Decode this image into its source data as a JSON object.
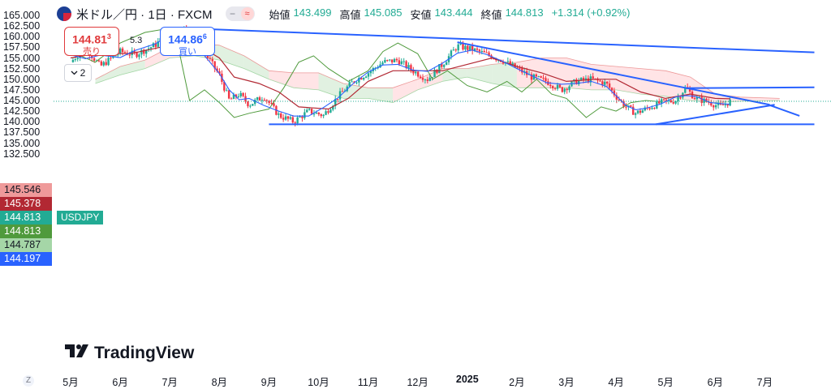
{
  "header": {
    "symbol": "米ドル／円 · 1日 · FXCM",
    "toggle_left": "−",
    "toggle_right": "≈",
    "ohlc": [
      {
        "label": "始値",
        "value": "143.499"
      },
      {
        "label": "高値",
        "value": "145.085"
      },
      {
        "label": "安値",
        "value": "143.444"
      },
      {
        "label": "終値",
        "value": "144.813"
      }
    ],
    "change": "+1.314 (+0.92%)"
  },
  "trade": {
    "sell_price": "144.81",
    "sell_sup": "3",
    "sell_label": "売り",
    "spread": "5.3",
    "buy_price": "144.86",
    "buy_sup": "6",
    "buy_label": "買い"
  },
  "collapse": {
    "icon": "chevron-down-icon",
    "count": "2"
  },
  "price_tags": [
    {
      "value": "145.546",
      "color": "#ef9a9a",
      "text_color": "#131722"
    },
    {
      "value": "145.378",
      "color": "#b22833",
      "text_color": "#ffffff"
    },
    {
      "value": "144.813",
      "color": "#22ab94",
      "text_color": "#ffffff"
    },
    {
      "value": "144.813",
      "color": "#4f9a3c",
      "text_color": "#ffffff"
    },
    {
      "value": "144.787",
      "color": "#a5d6a7",
      "text_color": "#131722"
    },
    {
      "value": "144.197",
      "color": "#2962ff",
      "text_color": "#ffffff"
    }
  ],
  "symbol_tag": "USDJPY",
  "logo": {
    "text": "TradingView",
    "icon": "tradingview-logo-icon"
  },
  "scale_mode": "Z",
  "colors": {
    "up": "#22ab94",
    "down": "#f23645",
    "tenkan": "#2962ff",
    "kijun": "#b22833",
    "chikou": "#4f9a3c",
    "cloud_bull": "#c8e6c9",
    "cloud_bear": "#ffcdd2",
    "trendline": "#2962ff"
  },
  "chart_data": {
    "type": "candlestick",
    "series_name": "USDJPY",
    "ylim": [
      131.0,
      166.0
    ],
    "y_ticks": [
      "165.000",
      "162.500",
      "160.000",
      "157.500",
      "155.000",
      "152.500",
      "150.000",
      "147.500",
      "145.000",
      "142.500",
      "140.000",
      "137.500",
      "135.000",
      "132.500"
    ],
    "x_ticks": [
      {
        "label": "5月",
        "month": 0
      },
      {
        "label": "6月",
        "month": 1
      },
      {
        "label": "7月",
        "month": 2
      },
      {
        "label": "8月",
        "month": 3
      },
      {
        "label": "9月",
        "month": 4
      },
      {
        "label": "10月",
        "month": 5
      },
      {
        "label": "11月",
        "month": 6
      },
      {
        "label": "12月",
        "month": 7
      },
      {
        "label": "2025",
        "month": 8,
        "bold": true
      },
      {
        "label": "2月",
        "month": 9
      },
      {
        "label": "3月",
        "month": 10
      },
      {
        "label": "4月",
        "month": 11
      },
      {
        "label": "5月",
        "month": 12
      },
      {
        "label": "6月",
        "month": 13
      },
      {
        "label": "7月",
        "month": 14
      }
    ],
    "last_close": 144.813,
    "price_path": [
      [
        0.0,
        154.0
      ],
      [
        0.3,
        157.5
      ],
      [
        0.6,
        153.0
      ],
      [
        1.0,
        156.5
      ],
      [
        1.3,
        155.8
      ],
      [
        1.7,
        158.0
      ],
      [
        2.0,
        161.0
      ],
      [
        2.3,
        161.8
      ],
      [
        2.6,
        158.0
      ],
      [
        3.0,
        151.0
      ],
      [
        3.2,
        145.0
      ],
      [
        3.4,
        146.5
      ],
      [
        3.6,
        144.0
      ],
      [
        3.9,
        146.0
      ],
      [
        4.2,
        141.5
      ],
      [
        4.5,
        140.0
      ],
      [
        4.8,
        142.5
      ],
      [
        5.1,
        141.5
      ],
      [
        5.4,
        146.0
      ],
      [
        5.7,
        149.5
      ],
      [
        6.0,
        151.5
      ],
      [
        6.3,
        154.0
      ],
      [
        6.6,
        154.5
      ],
      [
        6.9,
        152.0
      ],
      [
        7.2,
        150.0
      ],
      [
        7.5,
        153.5
      ],
      [
        7.8,
        157.8
      ],
      [
        8.1,
        157.0
      ],
      [
        8.4,
        155.8
      ],
      [
        8.7,
        154.5
      ],
      [
        9.0,
        152.5
      ],
      [
        9.3,
        150.5
      ],
      [
        9.6,
        149.5
      ],
      [
        9.9,
        147.5
      ],
      [
        10.2,
        149.5
      ],
      [
        10.5,
        150.0
      ],
      [
        10.8,
        149.0
      ],
      [
        11.0,
        146.0
      ],
      [
        11.2,
        143.5
      ],
      [
        11.4,
        142.0
      ],
      [
        11.6,
        143.0
      ],
      [
        11.9,
        144.5
      ],
      [
        12.2,
        145.0
      ],
      [
        12.4,
        148.0
      ],
      [
        12.6,
        145.5
      ],
      [
        12.9,
        144.5
      ],
      [
        13.1,
        143.5
      ],
      [
        13.3,
        144.8
      ]
    ],
    "kijun_path": [
      [
        0.0,
        155.0
      ],
      [
        0.6,
        156.2
      ],
      [
        1.2,
        156.0
      ],
      [
        2.0,
        158.0
      ],
      [
        2.5,
        158.5
      ],
      [
        3.0,
        155.0
      ],
      [
        3.3,
        150.5
      ],
      [
        3.8,
        149.0
      ],
      [
        4.2,
        147.0
      ],
      [
        4.6,
        143.5
      ],
      [
        5.2,
        143.0
      ],
      [
        5.6,
        145.5
      ],
      [
        6.0,
        149.5
      ],
      [
        6.5,
        152.0
      ],
      [
        7.0,
        152.0
      ],
      [
        7.5,
        152.0
      ],
      [
        8.0,
        153.5
      ],
      [
        8.5,
        155.0
      ],
      [
        9.0,
        153.0
      ],
      [
        9.5,
        151.5
      ],
      [
        10.0,
        149.5
      ],
      [
        10.6,
        150.0
      ],
      [
        11.0,
        150.0
      ],
      [
        11.5,
        147.0
      ],
      [
        12.0,
        145.5
      ],
      [
        12.5,
        146.5
      ],
      [
        13.0,
        145.5
      ],
      [
        13.3,
        145.4
      ]
    ],
    "chikou_path": [
      [
        0.0,
        156.5
      ],
      [
        0.5,
        154.0
      ],
      [
        1.0,
        158.5
      ],
      [
        1.5,
        161.0
      ],
      [
        2.0,
        162.0
      ],
      [
        2.2,
        156.0
      ],
      [
        2.4,
        145.0
      ],
      [
        2.7,
        147.5
      ],
      [
        3.0,
        144.5
      ],
      [
        3.3,
        141.0
      ],
      [
        3.6,
        142.0
      ],
      [
        4.0,
        143.0
      ],
      [
        4.3,
        148.0
      ],
      [
        4.6,
        154.0
      ],
      [
        4.9,
        155.5
      ],
      [
        5.2,
        152.5
      ],
      [
        5.6,
        149.5
      ],
      [
        6.0,
        152.0
      ],
      [
        6.3,
        156.5
      ],
      [
        6.6,
        158.5
      ],
      [
        7.0,
        156.0
      ],
      [
        7.3,
        150.0
      ],
      [
        7.6,
        152.0
      ],
      [
        8.0,
        148.5
      ],
      [
        8.4,
        147.0
      ],
      [
        8.8,
        149.5
      ],
      [
        9.1,
        147.0
      ],
      [
        9.4,
        150.0
      ],
      [
        9.7,
        146.5
      ],
      [
        10.0,
        145.5
      ],
      [
        10.4,
        141.0
      ],
      [
        10.7,
        143.5
      ],
      [
        11.0,
        142.5
      ],
      [
        11.3,
        144.5
      ],
      [
        11.6,
        145.0
      ],
      [
        11.8,
        144.8
      ]
    ],
    "cloud_upper": [
      [
        0.5,
        150.0
      ],
      [
        1.0,
        153.0
      ],
      [
        1.5,
        154.5
      ],
      [
        2.0,
        157.5
      ],
      [
        2.5,
        158.5
      ],
      [
        3.0,
        158.0
      ],
      [
        3.5,
        155.5
      ],
      [
        4.0,
        152.0
      ],
      [
        4.5,
        151.5
      ],
      [
        5.0,
        151.5
      ],
      [
        5.5,
        149.0
      ],
      [
        6.0,
        148.0
      ],
      [
        6.5,
        148.0
      ],
      [
        7.0,
        150.0
      ],
      [
        7.5,
        152.5
      ],
      [
        8.0,
        152.5
      ],
      [
        8.5,
        153.5
      ],
      [
        9.0,
        154.0
      ],
      [
        9.5,
        155.0
      ],
      [
        10.0,
        155.0
      ],
      [
        10.5,
        153.5
      ],
      [
        11.0,
        153.0
      ],
      [
        11.5,
        152.5
      ],
      [
        12.0,
        152.0
      ],
      [
        12.5,
        150.5
      ],
      [
        13.0,
        146.5
      ],
      [
        13.5,
        145.8
      ],
      [
        14.3,
        145.5
      ]
    ],
    "cloud_lower": [
      [
        0.5,
        149.0
      ],
      [
        1.0,
        151.0
      ],
      [
        1.5,
        152.5
      ],
      [
        2.0,
        155.0
      ],
      [
        2.5,
        155.5
      ],
      [
        3.0,
        154.5
      ],
      [
        3.5,
        152.5
      ],
      [
        4.0,
        150.0
      ],
      [
        4.5,
        148.0
      ],
      [
        5.0,
        147.5
      ],
      [
        5.5,
        145.5
      ],
      [
        6.0,
        145.5
      ],
      [
        6.5,
        144.5
      ],
      [
        7.0,
        147.5
      ],
      [
        7.5,
        149.5
      ],
      [
        8.0,
        150.5
      ],
      [
        8.5,
        149.0
      ],
      [
        9.0,
        148.0
      ],
      [
        9.5,
        148.0
      ],
      [
        10.0,
        148.0
      ],
      [
        10.5,
        147.5
      ],
      [
        11.0,
        147.5
      ],
      [
        11.5,
        146.5
      ],
      [
        12.0,
        146.0
      ],
      [
        12.5,
        145.0
      ],
      [
        13.0,
        144.5
      ],
      [
        13.5,
        144.8
      ],
      [
        14.3,
        145.0
      ]
    ],
    "trendlines": [
      {
        "from": [
          2.7,
          161.8
        ],
        "to": [
          15.0,
          156.3
        ]
      },
      {
        "from": [
          7.8,
          158.7
        ],
        "to": [
          14.1,
          144.0
        ]
      },
      {
        "from": [
          4.0,
          139.4
        ],
        "to": [
          15.0,
          139.4
        ]
      },
      {
        "from": [
          11.8,
          139.4
        ],
        "to": [
          14.2,
          144.0
        ]
      },
      {
        "from": [
          12.4,
          147.9
        ],
        "to": [
          15.0,
          148.1
        ]
      },
      {
        "from": [
          14.1,
          143.9
        ],
        "to": [
          14.7,
          141.4
        ]
      }
    ]
  }
}
